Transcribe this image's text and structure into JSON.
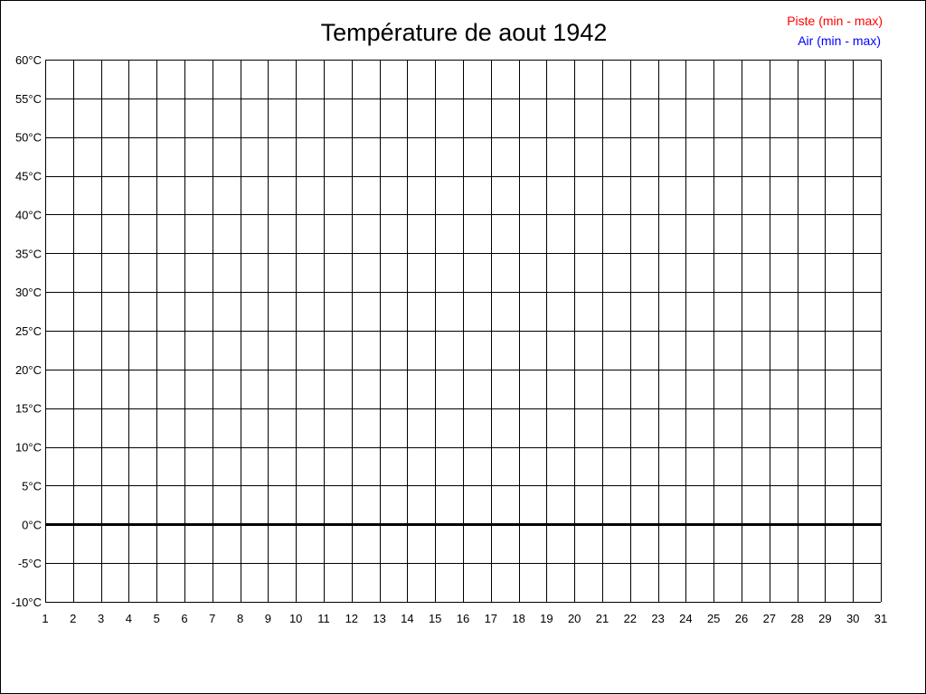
{
  "chart_data": {
    "type": "line",
    "title": "Température de aout 1942",
    "xlabel": "",
    "ylabel": "",
    "x_ticks": [
      "1",
      "2",
      "3",
      "4",
      "5",
      "6",
      "7",
      "8",
      "9",
      "10",
      "11",
      "12",
      "13",
      "14",
      "15",
      "16",
      "17",
      "18",
      "19",
      "20",
      "21",
      "22",
      "23",
      "24",
      "25",
      "26",
      "27",
      "28",
      "29",
      "30",
      "31"
    ],
    "y_ticks": [
      "-10°C",
      "-5°C",
      "0°C",
      "5°C",
      "10°C",
      "15°C",
      "20°C",
      "25°C",
      "30°C",
      "35°C",
      "40°C",
      "45°C",
      "50°C",
      "55°C",
      "60°C"
    ],
    "xlim": [
      1,
      31
    ],
    "ylim": [
      -10,
      60
    ],
    "y_step": 5,
    "grid": true,
    "zero_line_emphasized": true,
    "legend_position": "top-right",
    "legend": [
      {
        "label": "Piste (min - max)",
        "color": "#ff0000"
      },
      {
        "label": "Air (min - max)",
        "color": "#0000ff"
      }
    ],
    "series": [
      {
        "name": "Piste (min - max)",
        "color": "#ff0000",
        "values": []
      },
      {
        "name": "Air (min - max)",
        "color": "#0000ff",
        "values": []
      }
    ]
  }
}
